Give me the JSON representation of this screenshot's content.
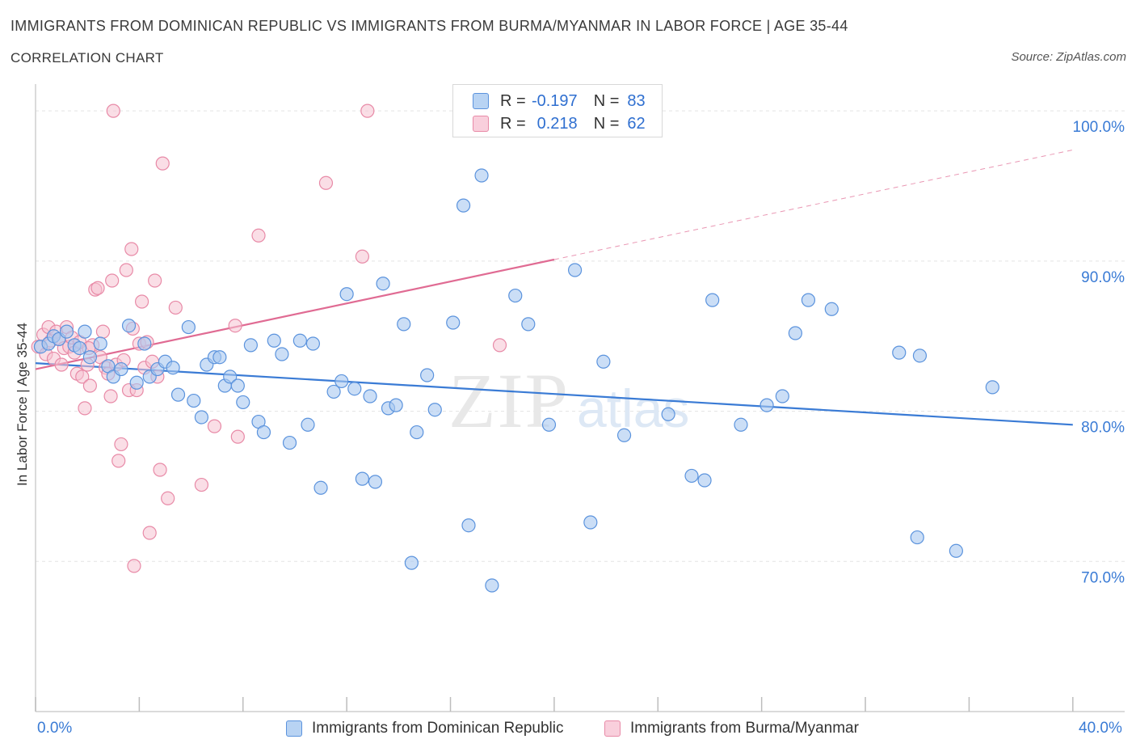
{
  "header": {
    "title": "IMMIGRANTS FROM DOMINICAN REPUBLIC VS IMMIGRANTS FROM BURMA/MYANMAR IN LABOR FORCE | AGE 35-44",
    "subtitle": "CORRELATION CHART",
    "source": "Source: ZipAtlas.com"
  },
  "legend": {
    "blue": {
      "r_label": "R =",
      "r_value": "-0.197",
      "n_label": "N =",
      "n_value": "83"
    },
    "pink": {
      "r_label": "R =",
      "r_value": "0.218",
      "n_label": "N =",
      "n_value": "62"
    }
  },
  "colors": {
    "blue_fill": "#a8c8f0",
    "blue_stroke": "#5b93dd",
    "blue_line": "#3a7bd5",
    "pink_fill": "#f6c3d2",
    "pink_stroke": "#e88aa7",
    "pink_line": "#e06b93",
    "tick_label": "#3a7bd5",
    "grid": "#e3e3e3"
  },
  "chart_data": {
    "type": "scatter",
    "title": "IMMIGRANTS FROM DOMINICAN REPUBLIC VS IMMIGRANTS FROM BURMA/MYANMAR IN LABOR FORCE | AGE 35-44",
    "xlabel": "",
    "ylabel": "In Labor Force | Age 35-44",
    "xlim": [
      0,
      42
    ],
    "ylim": [
      60,
      102
    ],
    "x_tick_labels": [
      "0.0%",
      "40.0%"
    ],
    "y_ticks": [
      70,
      80,
      90,
      100
    ],
    "y_tick_labels": [
      "70.0%",
      "80.0%",
      "90.0%",
      "100.0%"
    ],
    "grid": true,
    "legend_position": "top-center",
    "series": [
      {
        "name": "Immigrants from Dominican Republic",
        "color": "#5b93dd",
        "trend": {
          "x0": 0,
          "y0": 83.2,
          "x1": 40,
          "y1": 79.1,
          "dashed_from": null
        },
        "points": [
          [
            0.2,
            84.3
          ],
          [
            0.5,
            84.5
          ],
          [
            0.7,
            85.0
          ],
          [
            0.9,
            84.8
          ],
          [
            1.2,
            85.3
          ],
          [
            1.5,
            84.4
          ],
          [
            1.7,
            84.2
          ],
          [
            1.9,
            85.3
          ],
          [
            2.1,
            83.6
          ],
          [
            2.5,
            84.5
          ],
          [
            2.8,
            83.0
          ],
          [
            3.0,
            82.3
          ],
          [
            3.3,
            82.8
          ],
          [
            3.6,
            85.7
          ],
          [
            3.9,
            81.9
          ],
          [
            4.2,
            84.5
          ],
          [
            4.4,
            82.3
          ],
          [
            4.7,
            82.8
          ],
          [
            5.0,
            83.3
          ],
          [
            5.3,
            82.9
          ],
          [
            5.5,
            81.1
          ],
          [
            5.9,
            85.6
          ],
          [
            6.1,
            80.7
          ],
          [
            6.4,
            79.6
          ],
          [
            6.6,
            83.1
          ],
          [
            6.9,
            83.6
          ],
          [
            7.1,
            83.6
          ],
          [
            7.3,
            81.7
          ],
          [
            7.5,
            82.3
          ],
          [
            7.8,
            81.7
          ],
          [
            8.0,
            80.6
          ],
          [
            8.3,
            84.4
          ],
          [
            8.6,
            79.3
          ],
          [
            8.8,
            78.6
          ],
          [
            9.2,
            84.7
          ],
          [
            9.5,
            83.8
          ],
          [
            9.8,
            77.9
          ],
          [
            10.2,
            84.7
          ],
          [
            10.5,
            79.1
          ],
          [
            10.7,
            84.5
          ],
          [
            11.0,
            74.9
          ],
          [
            11.5,
            81.3
          ],
          [
            11.8,
            82.0
          ],
          [
            12.0,
            87.8
          ],
          [
            12.3,
            81.5
          ],
          [
            12.6,
            75.5
          ],
          [
            12.9,
            81.0
          ],
          [
            13.1,
            75.3
          ],
          [
            13.4,
            88.5
          ],
          [
            13.6,
            80.2
          ],
          [
            13.9,
            80.4
          ],
          [
            14.2,
            85.8
          ],
          [
            14.5,
            69.9
          ],
          [
            14.7,
            78.6
          ],
          [
            15.1,
            82.4
          ],
          [
            15.4,
            80.1
          ],
          [
            16.1,
            85.9
          ],
          [
            16.5,
            93.7
          ],
          [
            16.7,
            72.4
          ],
          [
            17.2,
            95.7
          ],
          [
            17.6,
            68.4
          ],
          [
            18.5,
            87.7
          ],
          [
            19.0,
            85.8
          ],
          [
            19.8,
            79.1
          ],
          [
            20.8,
            89.4
          ],
          [
            21.4,
            72.6
          ],
          [
            21.9,
            83.3
          ],
          [
            22.7,
            78.4
          ],
          [
            24.4,
            79.8
          ],
          [
            25.3,
            75.7
          ],
          [
            25.8,
            75.4
          ],
          [
            26.1,
            87.4
          ],
          [
            27.2,
            79.1
          ],
          [
            28.2,
            80.4
          ],
          [
            28.8,
            81.0
          ],
          [
            29.3,
            85.2
          ],
          [
            29.8,
            87.4
          ],
          [
            30.7,
            86.8
          ],
          [
            33.3,
            83.9
          ],
          [
            34.0,
            71.6
          ],
          [
            34.1,
            83.7
          ],
          [
            35.5,
            70.7
          ],
          [
            36.9,
            81.6
          ]
        ]
      },
      {
        "name": "Immigrants from Burma/Myanmar",
        "color": "#e88aa7",
        "trend": {
          "x0": 0,
          "y0": 82.8,
          "x1": 40,
          "y1": 97.4,
          "dashed_from": 20
        },
        "points": [
          [
            0.1,
            84.3
          ],
          [
            0.3,
            85.1
          ],
          [
            0.4,
            83.8
          ],
          [
            0.5,
            85.6
          ],
          [
            0.6,
            84.7
          ],
          [
            0.7,
            83.5
          ],
          [
            0.8,
            85.3
          ],
          [
            0.9,
            84.8
          ],
          [
            1.0,
            83.1
          ],
          [
            1.1,
            84.2
          ],
          [
            1.2,
            85.6
          ],
          [
            1.3,
            84.3
          ],
          [
            1.4,
            84.9
          ],
          [
            1.5,
            83.9
          ],
          [
            1.6,
            82.5
          ],
          [
            1.7,
            84.6
          ],
          [
            1.8,
            82.3
          ],
          [
            1.9,
            80.2
          ],
          [
            2.0,
            83.1
          ],
          [
            2.1,
            81.7
          ],
          [
            2.2,
            84.4
          ],
          [
            2.3,
            88.1
          ],
          [
            2.4,
            88.2
          ],
          [
            2.5,
            83.6
          ],
          [
            2.6,
            85.3
          ],
          [
            2.7,
            82.9
          ],
          [
            2.8,
            82.5
          ],
          [
            2.9,
            81.0
          ],
          [
            2.95,
            88.7
          ],
          [
            3.0,
            100.0
          ],
          [
            3.1,
            83.1
          ],
          [
            3.2,
            76.7
          ],
          [
            3.3,
            77.8
          ],
          [
            3.4,
            83.4
          ],
          [
            3.5,
            89.4
          ],
          [
            3.6,
            81.4
          ],
          [
            3.7,
            90.8
          ],
          [
            3.75,
            85.5
          ],
          [
            3.8,
            69.7
          ],
          [
            3.9,
            81.4
          ],
          [
            4.0,
            84.5
          ],
          [
            4.1,
            87.3
          ],
          [
            4.2,
            82.9
          ],
          [
            4.3,
            84.6
          ],
          [
            4.4,
            71.9
          ],
          [
            4.5,
            83.3
          ],
          [
            4.6,
            88.7
          ],
          [
            4.7,
            82.3
          ],
          [
            4.8,
            76.1
          ],
          [
            4.9,
            96.5
          ],
          [
            5.1,
            74.2
          ],
          [
            5.4,
            86.9
          ],
          [
            6.4,
            75.1
          ],
          [
            6.9,
            79.0
          ],
          [
            7.7,
            85.7
          ],
          [
            7.8,
            78.3
          ],
          [
            8.6,
            91.7
          ],
          [
            11.2,
            95.2
          ],
          [
            12.6,
            90.3
          ],
          [
            12.8,
            100.0
          ],
          [
            17.9,
            84.4
          ],
          [
            2.05,
            84.2
          ]
        ]
      }
    ]
  },
  "bottom_legend": {
    "blue_label": "Immigrants from Dominican Republic",
    "pink_label": "Immigrants from Burma/Myanmar"
  }
}
